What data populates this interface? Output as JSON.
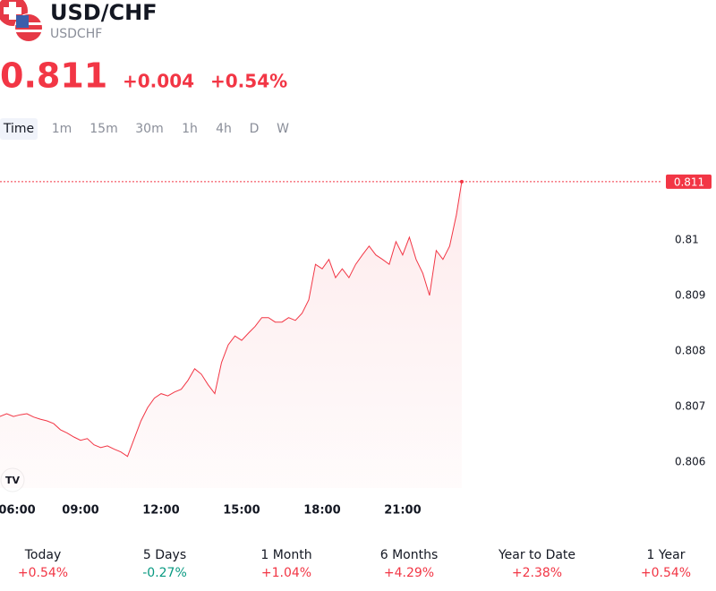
{
  "header": {
    "title": "USD/CHF",
    "symbol": "USDCHF",
    "price": "0.811",
    "change": "+0.004",
    "change_percent": "+0.54%"
  },
  "tabs": [
    "Time",
    "1m",
    "15m",
    "30m",
    "1h",
    "4h",
    "D",
    "W"
  ],
  "chart_data": {
    "type": "line",
    "color": "#f23645",
    "x": [
      6,
      6.25,
      6.5,
      6.75,
      7,
      7.25,
      7.5,
      7.75,
      8,
      8.25,
      8.5,
      8.75,
      9,
      9.25,
      9.5,
      9.75,
      10,
      10.25,
      10.5,
      10.75,
      11,
      11.25,
      11.5,
      11.75,
      12,
      12.25,
      12.5,
      12.75,
      13,
      13.25,
      13.5,
      13.75,
      14,
      14.25,
      14.5,
      14.75,
      15,
      15.25,
      15.5,
      15.75,
      16,
      16.25,
      16.5,
      16.75,
      17,
      17.25,
      17.5,
      17.75,
      18,
      18.25,
      18.5,
      18.75,
      19,
      19.25,
      19.5,
      19.75,
      20,
      20.25,
      20.5,
      20.75,
      21,
      21.25,
      21.5,
      21.75,
      22,
      22.25,
      22.5,
      22.75,
      23,
      23.2
    ],
    "values": [
      0.80682,
      0.80687,
      0.80682,
      0.80685,
      0.80687,
      0.80681,
      0.80677,
      0.80674,
      0.80669,
      0.80658,
      0.80652,
      0.80645,
      0.80639,
      0.80642,
      0.80631,
      0.80626,
      0.80629,
      0.80623,
      0.80618,
      0.8061,
      0.80642,
      0.80674,
      0.80698,
      0.80715,
      0.80723,
      0.80719,
      0.80726,
      0.80731,
      0.80747,
      0.80768,
      0.80758,
      0.80739,
      0.80723,
      0.80779,
      0.80811,
      0.80827,
      0.80819,
      0.80832,
      0.80844,
      0.8086,
      0.8086,
      0.80852,
      0.80852,
      0.8086,
      0.80855,
      0.80868,
      0.80892,
      0.80956,
      0.80948,
      0.80965,
      0.80932,
      0.80948,
      0.80932,
      0.80956,
      0.80973,
      0.80989,
      0.80973,
      0.80965,
      0.80956,
      0.80997,
      0.80973,
      0.81005,
      0.80965,
      0.8094,
      0.809,
      0.80981,
      0.80965,
      0.80989,
      0.81045,
      0.81105
    ],
    "xlim": [
      6,
      30.67
    ],
    "xticks": [
      {
        "value": 6,
        "label": "06:00"
      },
      {
        "value": 9,
        "label": "09:00"
      },
      {
        "value": 12,
        "label": "12:00"
      },
      {
        "value": 15,
        "label": "15:00"
      },
      {
        "value": 18,
        "label": "18:00"
      },
      {
        "value": 21,
        "label": "21:00"
      }
    ],
    "ylim": [
      0.80553,
      0.8115
    ],
    "yticks": [
      0.806,
      0.807,
      0.808,
      0.809,
      0.81
    ]
  },
  "periods": [
    {
      "label": "Today",
      "change": "+0.54%",
      "color": "#f23645"
    },
    {
      "label": "5 Days",
      "change": "-0.27%",
      "color": "#089981"
    },
    {
      "label": "1 Month",
      "change": "+1.04%",
      "color": "#f23645"
    },
    {
      "label": "6 Months",
      "change": "+4.29%",
      "color": "#f23645"
    },
    {
      "label": "Year to Date",
      "change": "+2.38%",
      "color": "#f23645"
    },
    {
      "label": "1 Year",
      "change": "+0.54%",
      "color": "#f23645"
    }
  ]
}
